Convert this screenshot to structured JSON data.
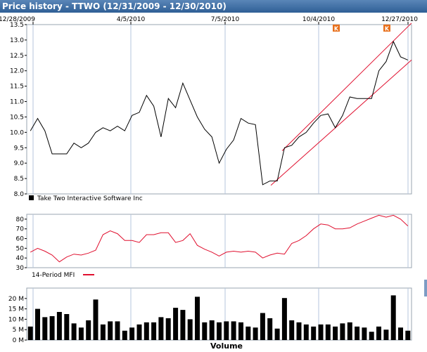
{
  "window": {
    "title": "Price history - TTWO (12/31/2009 - 12/30/2010)"
  },
  "colors": {
    "frame": "#9aa4b1",
    "grid": "#b5c6dc",
    "price": "#000000",
    "channel": "#e0102f",
    "mfi": "#e0102f",
    "volume": "#000000",
    "marker": "#e8701c"
  },
  "chart_data": [
    {
      "type": "line",
      "name": "price",
      "x_ticks": [
        "12/28/2009",
        "4/5/2010",
        "7/5/2010",
        "10/4/2010",
        "12/27/2010"
      ],
      "ylim": [
        8.0,
        13.5
      ],
      "y_ticks": [
        "8.0",
        "8.5",
        "9.0",
        "9.5",
        "10.0",
        "10.5",
        "11.0",
        "11.5",
        "12.0",
        "12.5",
        "13.0",
        "13.5"
      ],
      "grid": true,
      "legend": "Take Two Interactive Software Inc",
      "markers": [
        "K",
        "K"
      ],
      "values": [
        10.05,
        10.45,
        10.05,
        9.3,
        9.3,
        9.3,
        9.65,
        9.5,
        9.65,
        10.0,
        10.15,
        10.05,
        10.2,
        10.05,
        10.55,
        10.65,
        11.2,
        10.85,
        9.85,
        11.1,
        10.8,
        11.6,
        11.05,
        10.5,
        10.1,
        9.85,
        9.0,
        9.45,
        9.75,
        10.45,
        10.3,
        10.25,
        8.3,
        8.42,
        8.42,
        9.5,
        9.58,
        9.85,
        10.0,
        10.3,
        10.55,
        10.6,
        10.15,
        10.55,
        11.15,
        11.1,
        11.1,
        11.1,
        12.0,
        12.3,
        12.95,
        12.45,
        12.35
      ],
      "trend_channel": {
        "upper": [
          9.4,
          13.55
        ],
        "lower": [
          8.28,
          12.35
        ]
      }
    },
    {
      "type": "line",
      "name": "mfi",
      "ylim": [
        30,
        85
      ],
      "y_ticks": [
        "30",
        "40",
        "50",
        "60",
        "70",
        "80"
      ],
      "grid": true,
      "legend": "14-Period MFI",
      "values": [
        46,
        50,
        47,
        43,
        36,
        41,
        44,
        43,
        45,
        48,
        64,
        68,
        65,
        58,
        58,
        56,
        64,
        64,
        66,
        66,
        56,
        58,
        65,
        53,
        49,
        46,
        42,
        46,
        47,
        46,
        47,
        46,
        40,
        43,
        45,
        44,
        55,
        58,
        63,
        70,
        75,
        74,
        70,
        70,
        71,
        75,
        78,
        81,
        84,
        82,
        84,
        80,
        73
      ]
    },
    {
      "type": "bar",
      "name": "volume",
      "xlabel": "Volume",
      "ylim": [
        0,
        25
      ],
      "y_ticks": [
        "0 M",
        "5 M",
        "10 M",
        "15 M",
        "20 M"
      ],
      "grid": true,
      "values": [
        6.5,
        15,
        11,
        11.5,
        13.5,
        12.5,
        8,
        6,
        9.5,
        19.5,
        7.5,
        9,
        9,
        4.5,
        6,
        7.5,
        8.5,
        8.5,
        11,
        10.5,
        15.5,
        14.5,
        10,
        20.8,
        8.5,
        9.5,
        8.5,
        9,
        9,
        8.5,
        6.5,
        6,
        13,
        10.5,
        5.5,
        20.2,
        9.5,
        8.5,
        7.5,
        6.5,
        7.5,
        7.5,
        6.5,
        8,
        8.5,
        6.5,
        6,
        4,
        6.5,
        5,
        21.5,
        6,
        4.5
      ]
    }
  ]
}
